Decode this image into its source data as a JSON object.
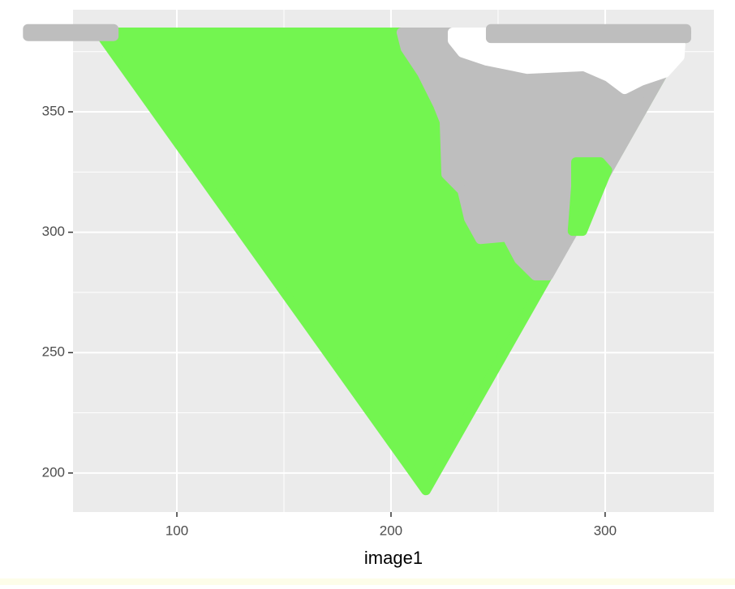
{
  "chart_data": {
    "type": "polygon",
    "x_label": "image1",
    "xlim": [
      51.5,
      350.8
    ],
    "ylim": [
      183.8,
      392.4
    ],
    "xticks": [
      100,
      200,
      300
    ],
    "yticks": [
      200,
      250,
      300,
      350
    ],
    "x_minor_grid": [
      150,
      250
    ],
    "y_minor_grid": [
      225,
      275,
      325,
      375
    ],
    "grid": true,
    "background": "#ebebeb",
    "series": [
      {
        "color": "#73f550",
        "x": [
          63.6,
          337.9,
          216.3
        ],
        "y": [
          383.0,
          383.0,
          192.8
        ]
      },
      {
        "color": "#bebebe",
        "x": [
          204.9,
          206.8,
          214.4,
          222.0,
          225.0,
          225.8,
          233.3,
          236.4,
          241.7,
          254.2,
          259.8,
          267.4,
          273.5,
          337.9
        ],
        "y": [
          383.0,
          376.3,
          366.2,
          352.7,
          346.0,
          324.1,
          317.3,
          305.6,
          297.1,
          298.1,
          288.7,
          282.0,
          282.0,
          383.0
        ]
      },
      {
        "color": "#ffffff",
        "x": [
          228.8,
          335.6,
          334.8,
          328.0,
          316.7,
          309.1,
          301.5,
          290.2,
          263.6,
          244.7,
          233.3,
          228.8
        ],
        "y": [
          383.0,
          383.0,
          372.9,
          366.2,
          362.8,
          359.4,
          364.5,
          368.9,
          367.8,
          371.2,
          374.6,
          379.6
        ]
      },
      {
        "color": "#bebebe",
        "x": [
          246.6,
          337.9,
          337.9,
          246.6
        ],
        "y": [
          384.4,
          384.4,
          380.6,
          380.6
        ]
      },
      {
        "color": "#bebebe",
        "x": [
          70.5,
          30.4,
          30.4,
          70.5
        ],
        "y": [
          384.4,
          384.4,
          381.4,
          381.4
        ]
      },
      {
        "color": "#73f550",
        "x": [
          286.4,
          297.7,
          301.0,
          289.4,
          284.8,
          286.4
        ],
        "y": [
          329.1,
          329.1,
          325.8,
          300.5,
          300.5,
          319.0
        ]
      }
    ]
  }
}
